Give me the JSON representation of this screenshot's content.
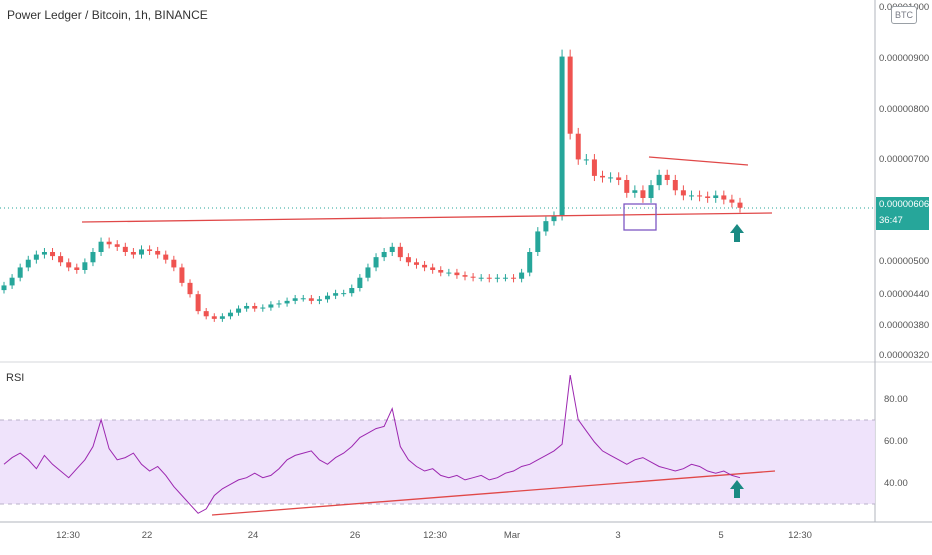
{
  "header": {
    "title": "Power Ledger / Bitcoin, 1h, BINANCE"
  },
  "price_axis": {
    "ticks": [
      "0.00001000",
      "0.00000900",
      "0.00000800",
      "0.00000700",
      "0.00000500",
      "0.00000440",
      "0.00000380",
      "0.00000320"
    ],
    "currency_label": "BTC",
    "current_price": "0.00000606",
    "countdown": "36:47"
  },
  "rsi_panel": {
    "label": "RSI",
    "ticks": [
      "80.00",
      "60.00",
      "40.00"
    ]
  },
  "time_axis": {
    "labels": [
      "12:30",
      "22",
      "24",
      "26",
      "12:30",
      "Mar",
      "3",
      "5",
      "12:30"
    ]
  },
  "colors": {
    "up": "#26a69a",
    "down": "#ef5350",
    "trendline": "#e04848",
    "rsi_line": "#9c27b0",
    "rsi_band": "#ede0fb",
    "box": "#7e57c2",
    "arrow": "#1a8a83"
  },
  "chart_data": [
    {
      "type": "candlestick",
      "title": "Power Ledger / Bitcoin, 1h, BINANCE",
      "ylim": [
        3.1e-06,
        1.01e-05
      ],
      "series": [
        {
          "values": [
            4.55e-06,
            4.7e-06,
            4.9e-06,
            5.05e-06,
            5.15e-06,
            5.2e-06,
            5.12e-06,
            5e-06,
            4.9e-06,
            4.85e-06,
            5e-06,
            5.2e-06,
            5.4e-06,
            5.35e-06,
            5.3e-06,
            5.2e-06,
            5.15e-06,
            5.25e-06,
            5.22e-06,
            5.15e-06,
            5.05e-06,
            4.9e-06,
            4.6e-06,
            4.38e-06,
            4.05e-06,
            3.95e-06,
            3.9e-06,
            3.95e-06,
            4.02e-06,
            4.1e-06,
            4.15e-06,
            4.1e-06,
            4.12e-06,
            4.18e-06,
            4.2e-06,
            4.25e-06,
            4.3e-06,
            4.3e-06,
            4.25e-06,
            4.28e-06,
            4.35e-06,
            4.4e-06,
            4.4e-06,
            4.5e-06,
            4.7e-06,
            4.9e-06,
            5.1e-06,
            5.2e-06,
            5.3e-06,
            5.1e-06,
            5e-06,
            4.95e-06,
            4.9e-06,
            4.85e-06,
            4.8e-06,
            4.8e-06,
            4.75e-06,
            4.72e-06,
            4.7e-06,
            4.7e-06,
            4.68e-06,
            4.7e-06,
            4.7e-06,
            4.68e-06,
            4.8e-06,
            5.2e-06,
            5.6e-06,
            5.8e-06,
            5.9e-06,
            9e-06,
            7.5e-06,
            7e-06,
            7e-06,
            6.68e-06,
            6.65e-06,
            6.65e-06,
            6.6e-06,
            6.35e-06,
            6.4e-06,
            6.25e-06,
            6.5e-06,
            6.7e-06,
            6.6e-06,
            6.4e-06,
            6.3e-06,
            6.3e-06,
            6.28e-06,
            6.25e-06,
            6.3e-06,
            6.22e-06,
            6.16e-06,
            6.06e-06
          ]
        }
      ]
    },
    {
      "type": "line",
      "title": "RSI",
      "ylim": [
        25,
        95
      ],
      "series": [
        {
          "name": "RSI",
          "values": [
            50,
            53,
            55,
            52,
            48,
            54,
            50,
            47,
            44,
            48,
            52,
            58,
            70,
            57,
            52,
            53,
            55,
            50,
            47,
            49,
            45,
            40,
            36,
            32,
            28,
            30,
            36,
            39,
            41,
            43,
            44,
            46,
            44,
            45,
            48,
            52,
            54,
            55,
            56,
            52,
            50,
            53,
            55,
            58,
            62,
            64,
            66,
            67,
            75,
            58,
            52,
            49,
            47,
            48,
            45,
            44,
            45,
            43,
            44,
            45,
            43,
            44,
            46,
            47,
            49,
            50,
            52,
            54,
            56,
            59,
            90,
            70,
            65,
            60,
            56,
            54,
            52,
            50,
            52,
            53,
            51,
            49,
            48,
            47,
            48,
            50,
            49,
            47,
            46,
            47,
            45,
            44
          ]
        }
      ]
    }
  ]
}
